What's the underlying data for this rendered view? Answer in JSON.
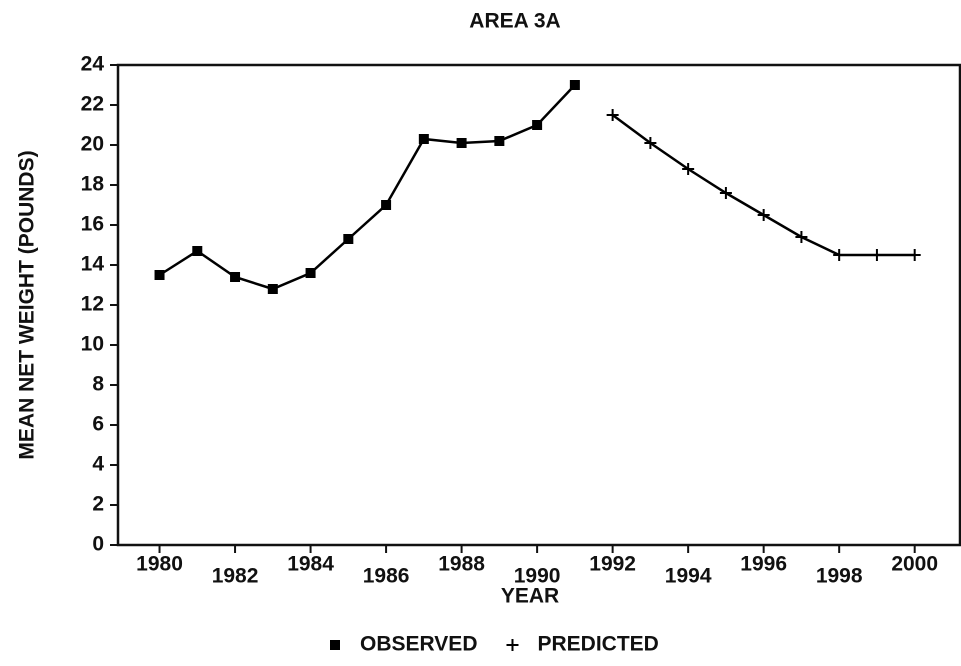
{
  "chart_data": {
    "type": "line",
    "title": "AREA 3A",
    "x_label": "YEAR",
    "y_label": "MEAN NET WEIGHT (POUNDS)",
    "x": [
      1980,
      1981,
      1982,
      1983,
      1984,
      1985,
      1986,
      1987,
      1988,
      1989,
      1990,
      1991,
      1992,
      1993,
      1994,
      1995,
      1996,
      1997,
      1998,
      1999,
      2000
    ],
    "series": [
      {
        "name": "OBSERVED",
        "color": "#000000",
        "marker": "square",
        "values": [
          13.5,
          14.7,
          13.4,
          12.8,
          13.6,
          15.3,
          17.0,
          20.3,
          20.1,
          20.2,
          21.0,
          23.0,
          null,
          null,
          null,
          null,
          null,
          null,
          null,
          null,
          null
        ]
      },
      {
        "name": "PREDICTED",
        "color": "#000000",
        "marker": "plus",
        "values": [
          null,
          null,
          null,
          null,
          null,
          null,
          null,
          null,
          null,
          null,
          null,
          null,
          21.5,
          20.1,
          18.8,
          17.6,
          16.5,
          15.4,
          14.5,
          14.5,
          14.5
        ]
      }
    ],
    "xlim": [
      1978.9,
      2001.2
    ],
    "xticks": [
      1980,
      1982,
      1984,
      1986,
      1988,
      1990,
      1992,
      1994,
      1996,
      1998,
      2000
    ],
    "ylim": [
      0,
      24
    ],
    "yticks": [
      0,
      2,
      4,
      6,
      8,
      10,
      12,
      14,
      16,
      18,
      20,
      22,
      24
    ],
    "legend": "bottom"
  }
}
